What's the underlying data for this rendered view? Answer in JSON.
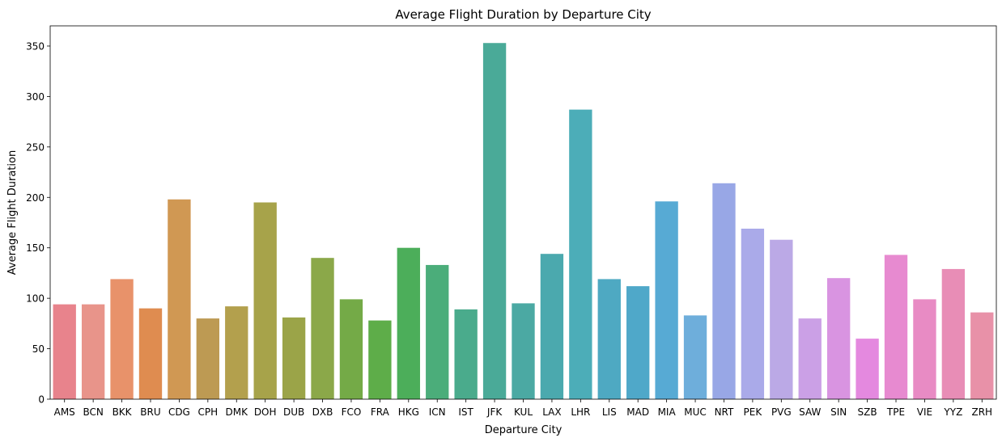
{
  "chart_data": {
    "type": "bar",
    "title": "Average Flight Duration by Departure City",
    "xlabel": "Departure City",
    "ylabel": "Average Flight Duration",
    "ylim": [
      0,
      370
    ],
    "yticks": [
      0,
      50,
      100,
      150,
      200,
      250,
      300,
      350
    ],
    "grid": false,
    "categories": [
      "AMS",
      "BCN",
      "BKK",
      "BRU",
      "CDG",
      "CPH",
      "DMK",
      "DOH",
      "DUB",
      "DXB",
      "FCO",
      "FRA",
      "HKG",
      "ICN",
      "IST",
      "JFK",
      "KUL",
      "LAX",
      "LHR",
      "LIS",
      "MAD",
      "MIA",
      "MUC",
      "NRT",
      "PEK",
      "PVG",
      "SAW",
      "SIN",
      "SZB",
      "TPE",
      "VIE",
      "YYZ",
      "ZRH"
    ],
    "values": [
      94,
      94,
      119,
      90,
      198,
      80,
      92,
      195,
      81,
      140,
      99,
      78,
      150,
      133,
      89,
      353,
      95,
      144,
      287,
      119,
      112,
      196,
      83,
      214,
      169,
      158,
      80,
      120,
      60,
      143,
      99,
      129,
      86
    ],
    "colors": [
      "#e8838c",
      "#e8948a",
      "#e8926a",
      "#df8c50",
      "#d09853",
      "#bd9a53",
      "#b3a04d",
      "#a7a34a",
      "#9ba448",
      "#8ba849",
      "#74aa47",
      "#5ead49",
      "#4cae5a",
      "#4bad7a",
      "#4aab8c",
      "#4aaa98",
      "#4ba9a3",
      "#4ba9ae",
      "#4cadb8",
      "#4ea9c2",
      "#4fa8c9",
      "#57aad4",
      "#6eaedb",
      "#98a7e6",
      "#aaaae9",
      "#bba9e6",
      "#cba0e6",
      "#d994e1",
      "#e489df",
      "#e78ad0",
      "#e88bc4",
      "#e88db6",
      "#e891a8"
    ]
  }
}
